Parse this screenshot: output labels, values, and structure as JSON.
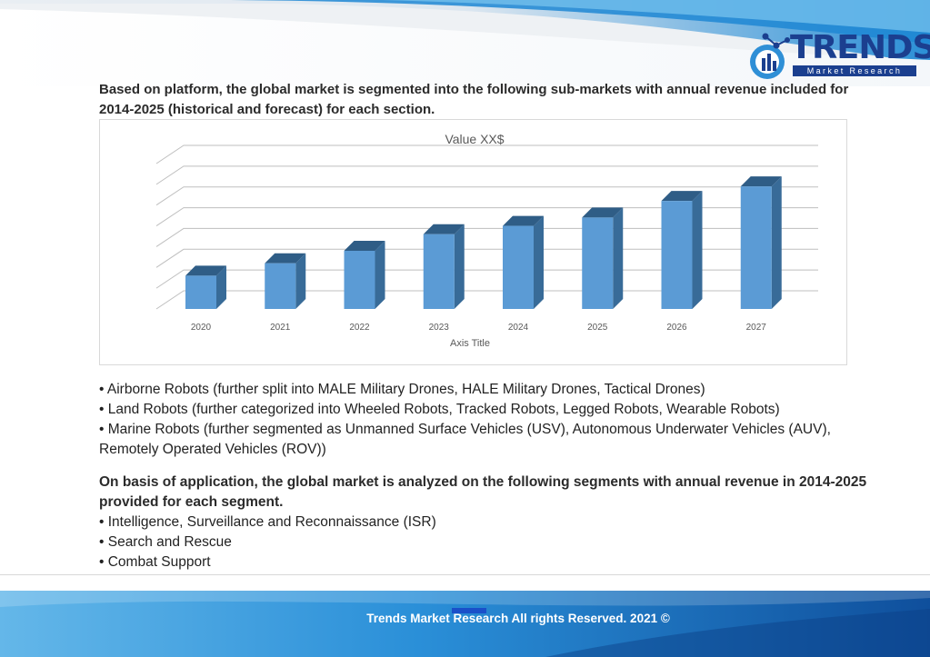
{
  "logo": {
    "word": "TRENDS",
    "sub": "Market Research"
  },
  "intro": "Based on platform, the global market is segmented into the following sub-markets with annual revenue included for 2014-2025 (historical and forecast) for each section.",
  "chart_data": {
    "type": "bar",
    "title": "Value XX$",
    "xlabel": "Axis Title",
    "ylabel": "",
    "categories": [
      "2020",
      "2021",
      "2022",
      "2023",
      "2024",
      "2025",
      "2026",
      "2027"
    ],
    "values": [
      1.6,
      2.2,
      2.8,
      3.6,
      4.0,
      4.4,
      5.2,
      5.9
    ],
    "ylim": [
      0,
      7
    ],
    "grid": true,
    "style": "3d-column",
    "colors": {
      "front": "#5b9bd5",
      "side": "#386b98",
      "top": "#2f5d86"
    }
  },
  "platform_items": [
    "• Airborne Robots (further split into MALE Military Drones, HALE Military Drones, Tactical Drones)",
    "• Land Robots (further categorized into Wheeled Robots, Tracked Robots, Legged Robots, Wearable Robots)",
    "• Marine Robots (further segmented as Unmanned Surface Vehicles (USV), Autonomous Underwater Vehicles (AUV), Remotely Operated Vehicles (ROV))"
  ],
  "application": {
    "heading": "On basis of application, the global market is analyzed on the following segments with annual revenue in 2014-2025 provided for each segment.",
    "items": [
      "• Intelligence, Surveillance and Reconnaissance (ISR)",
      "• Search and Rescue",
      "• Combat Support"
    ]
  },
  "footer": {
    "text": "Trends Market Research All rights Reserved. 2021 ©"
  }
}
